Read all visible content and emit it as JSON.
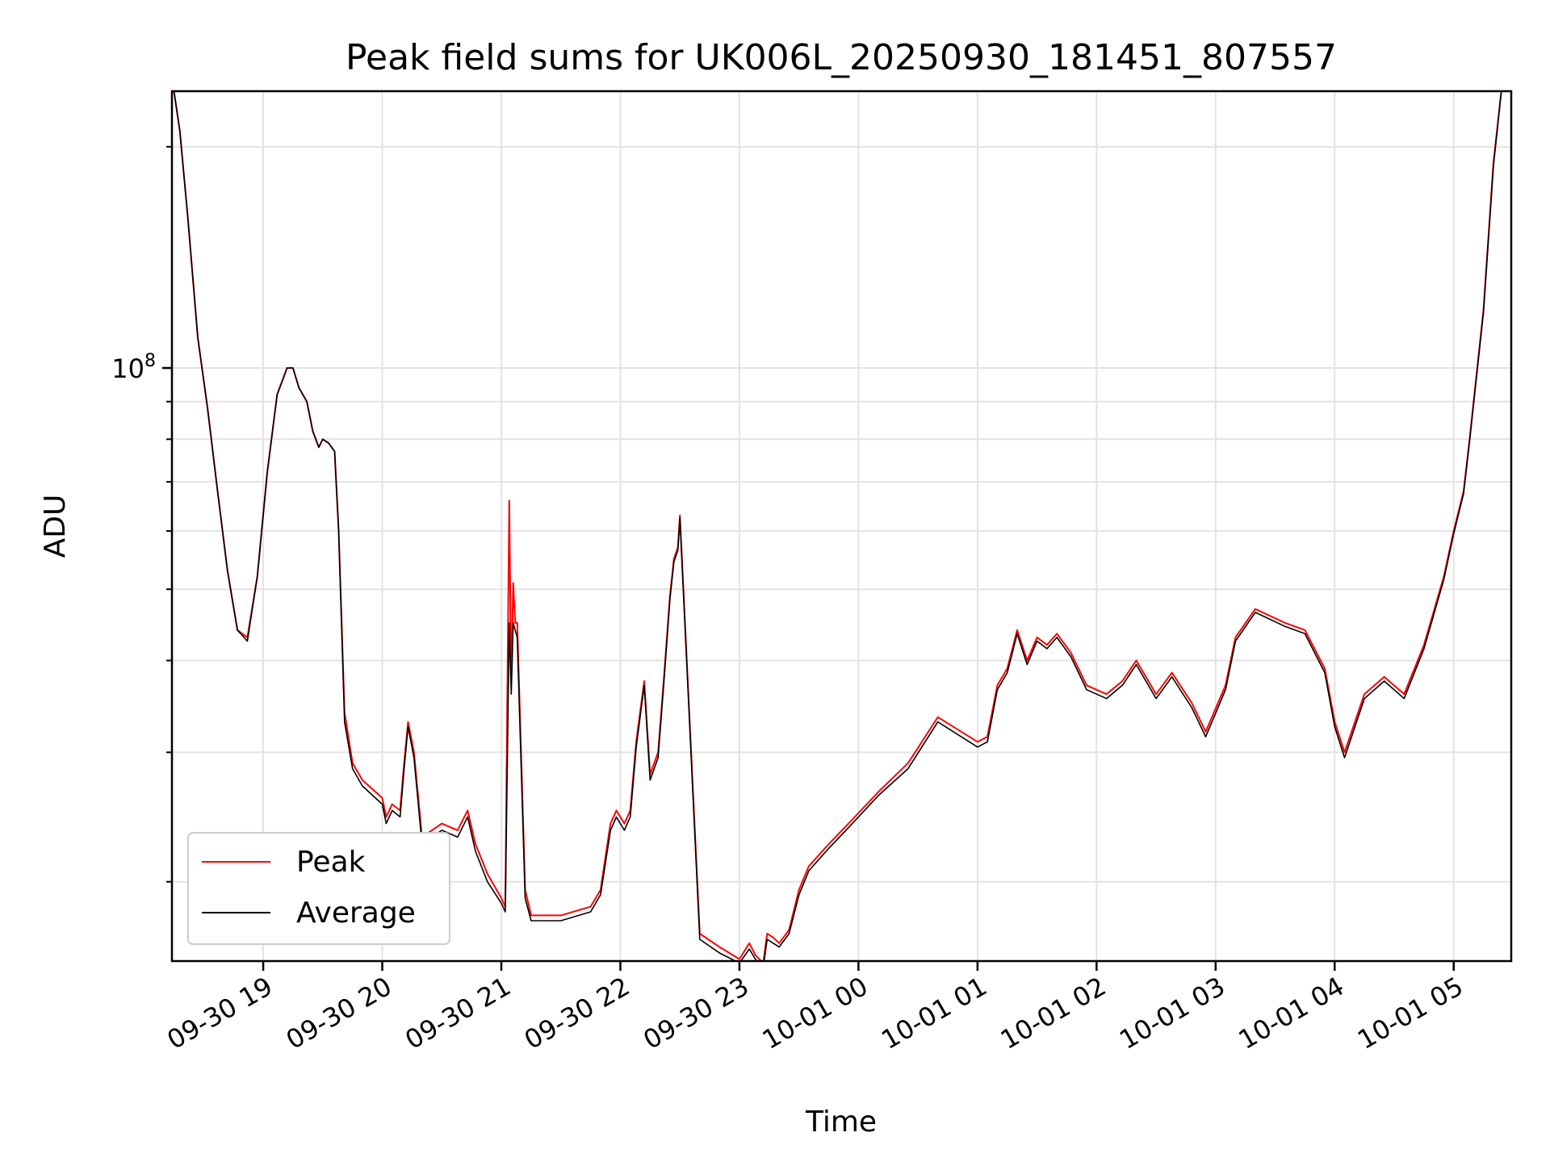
{
  "chart_data": {
    "type": "line",
    "title": "Peak field sums for UK006L_20250930_181451_807557",
    "xlabel": "Time",
    "ylabel": "ADU",
    "yscale": "log",
    "ylim": [
      15600000,
      238000000
    ],
    "xlim": [
      "2025-09-30 18:14",
      "2025-10-01 05:29"
    ],
    "grid": true,
    "legend_position": "lower-left",
    "x_tick_labels": [
      "09-30 19",
      "09-30 20",
      "09-30 21",
      "09-30 22",
      "09-30 23",
      "10-01 00",
      "10-01 01",
      "10-01 02",
      "10-01 03",
      "10-01 04",
      "10-01 05"
    ],
    "y_tick_label": {
      "base": "10",
      "exponent": "8"
    },
    "y_major_tick": 100000000,
    "y_minor_ticks": [
      20000000,
      30000000,
      40000000,
      50000000,
      60000000,
      70000000,
      80000000,
      90000000,
      200000000
    ],
    "series": [
      {
        "name": "Peak",
        "color": "#ff0000",
        "x": [
          "2025-09-30 18:15",
          "2025-09-30 18:18",
          "2025-09-30 18:22",
          "2025-09-30 18:27",
          "2025-09-30 18:32",
          "2025-09-30 18:37",
          "2025-09-30 18:42",
          "2025-09-30 18:47",
          "2025-09-30 18:52",
          "2025-09-30 18:57",
          "2025-09-30 19:02",
          "2025-09-30 19:07",
          "2025-09-30 19:12",
          "2025-09-30 19:15",
          "2025-09-30 19:18",
          "2025-09-30 19:22",
          "2025-09-30 19:25",
          "2025-09-30 19:28",
          "2025-09-30 19:30",
          "2025-09-30 19:33",
          "2025-09-30 19:36",
          "2025-09-30 19:38",
          "2025-09-30 19:41",
          "2025-09-30 19:45",
          "2025-09-30 19:50",
          "2025-09-30 20:00",
          "2025-09-30 20:02",
          "2025-09-30 20:05",
          "2025-09-30 20:09",
          "2025-09-30 20:11",
          "2025-09-30 20:13",
          "2025-09-30 20:16",
          "2025-09-30 20:20",
          "2025-09-30 20:30",
          "2025-09-30 20:38",
          "2025-09-30 20:43",
          "2025-09-30 20:47",
          "2025-09-30 20:53",
          "2025-09-30 21:00",
          "2025-09-30 21:02",
          "2025-09-30 21:04",
          "2025-09-30 21:05",
          "2025-09-30 21:06",
          "2025-09-30 21:07",
          "2025-09-30 21:08",
          "2025-09-30 21:12",
          "2025-09-30 21:15",
          "2025-09-30 21:30",
          "2025-09-30 21:45",
          "2025-09-30 21:50",
          "2025-09-30 21:55",
          "2025-09-30 21:58",
          "2025-09-30 22:02",
          "2025-09-30 22:05",
          "2025-09-30 22:08",
          "2025-09-30 22:12",
          "2025-09-30 22:15",
          "2025-09-30 22:19",
          "2025-09-30 22:22",
          "2025-09-30 22:25",
          "2025-09-30 22:27",
          "2025-09-30 22:29",
          "2025-09-30 22:30",
          "2025-09-30 22:40",
          "2025-09-30 22:50",
          "2025-09-30 23:00",
          "2025-09-30 23:05",
          "2025-09-30 23:08",
          "2025-09-30 23:12",
          "2025-09-30 23:14",
          "2025-09-30 23:17",
          "2025-09-30 23:20",
          "2025-09-30 23:25",
          "2025-09-30 23:30",
          "2025-09-30 23:35",
          "2025-09-30 23:45",
          "2025-09-30 23:55",
          "2025-10-01 00:10",
          "2025-10-01 00:25",
          "2025-10-01 00:40",
          "2025-10-01 01:00",
          "2025-10-01 01:05",
          "2025-10-01 01:10",
          "2025-10-01 01:15",
          "2025-10-01 01:20",
          "2025-10-01 01:25",
          "2025-10-01 01:30",
          "2025-10-01 01:35",
          "2025-10-01 01:40",
          "2025-10-01 01:47",
          "2025-10-01 01:55",
          "2025-10-01 02:05",
          "2025-10-01 02:13",
          "2025-10-01 02:20",
          "2025-10-01 02:30",
          "2025-10-01 02:38",
          "2025-10-01 02:48",
          "2025-10-01 02:55",
          "2025-10-01 03:05",
          "2025-10-01 03:10",
          "2025-10-01 03:20",
          "2025-10-01 03:35",
          "2025-10-01 03:45",
          "2025-10-01 03:55",
          "2025-10-01 04:00",
          "2025-10-01 04:05",
          "2025-10-01 04:15",
          "2025-10-01 04:25",
          "2025-10-01 04:35",
          "2025-10-01 04:45",
          "2025-10-01 04:55",
          "2025-10-01 05:00",
          "2025-10-01 05:05",
          "2025-10-01 05:08",
          "2025-10-01 05:15",
          "2025-10-01 05:20",
          "2025-10-01 05:24"
        ],
        "values": [
          238000000,
          210000000,
          160000000,
          110000000,
          88000000,
          68000000,
          53000000,
          44000000,
          43000000,
          52000000,
          72000000,
          92000000,
          100000000,
          100000000,
          94000000,
          90000000,
          82000000,
          78000000,
          80000000,
          79000000,
          77000000,
          60000000,
          34000000,
          29000000,
          27500000,
          26000000,
          24500000,
          25500000,
          25000000,
          29000000,
          33000000,
          30000000,
          23000000,
          24000000,
          23500000,
          25000000,
          22500000,
          20500000,
          19000000,
          18500000,
          66000000,
          37000000,
          51000000,
          45000000,
          45000000,
          19500000,
          18000000,
          18000000,
          18500000,
          19500000,
          24000000,
          25000000,
          24000000,
          25000000,
          31000000,
          37500000,
          28000000,
          30000000,
          38000000,
          49000000,
          55000000,
          57000000,
          63000000,
          17000000,
          16300000,
          15700000,
          16500000,
          15900000,
          15500000,
          17000000,
          16800000,
          16500000,
          17200000,
          19500000,
          21000000,
          22500000,
          24000000,
          26500000,
          29000000,
          33500000,
          31000000,
          31500000,
          37000000,
          39000000,
          44000000,
          40000000,
          43000000,
          42000000,
          43500000,
          41000000,
          37000000,
          36000000,
          37500000,
          40000000,
          36000000,
          38500000,
          35000000,
          32000000,
          37000000,
          43000000,
          47000000,
          45000000,
          44000000,
          39000000,
          33000000,
          30000000,
          36000000,
          38000000,
          36000000,
          42000000,
          52000000,
          60000000,
          68000000,
          80000000,
          120000000,
          190000000,
          238000000
        ]
      },
      {
        "name": "Average",
        "color": "#000000",
        "x": [
          "2025-09-30 18:15",
          "2025-09-30 18:18",
          "2025-09-30 18:22",
          "2025-09-30 18:27",
          "2025-09-30 18:32",
          "2025-09-30 18:37",
          "2025-09-30 18:42",
          "2025-09-30 18:47",
          "2025-09-30 18:52",
          "2025-09-30 18:57",
          "2025-09-30 19:02",
          "2025-09-30 19:07",
          "2025-09-30 19:12",
          "2025-09-30 19:15",
          "2025-09-30 19:18",
          "2025-09-30 19:22",
          "2025-09-30 19:25",
          "2025-09-30 19:28",
          "2025-09-30 19:30",
          "2025-09-30 19:33",
          "2025-09-30 19:36",
          "2025-09-30 19:38",
          "2025-09-30 19:41",
          "2025-09-30 19:45",
          "2025-09-30 19:50",
          "2025-09-30 20:00",
          "2025-09-30 20:02",
          "2025-09-30 20:05",
          "2025-09-30 20:09",
          "2025-09-30 20:11",
          "2025-09-30 20:13",
          "2025-09-30 20:16",
          "2025-09-30 20:20",
          "2025-09-30 20:30",
          "2025-09-30 20:38",
          "2025-09-30 20:43",
          "2025-09-30 20:47",
          "2025-09-30 20:53",
          "2025-09-30 21:00",
          "2025-09-30 21:02",
          "2025-09-30 21:04",
          "2025-09-30 21:05",
          "2025-09-30 21:06",
          "2025-09-30 21:07",
          "2025-09-30 21:08",
          "2025-09-30 21:12",
          "2025-09-30 21:15",
          "2025-09-30 21:30",
          "2025-09-30 21:45",
          "2025-09-30 21:50",
          "2025-09-30 21:55",
          "2025-09-30 21:58",
          "2025-09-30 22:02",
          "2025-09-30 22:05",
          "2025-09-30 22:08",
          "2025-09-30 22:12",
          "2025-09-30 22:15",
          "2025-09-30 22:19",
          "2025-09-30 22:22",
          "2025-09-30 22:25",
          "2025-09-30 22:27",
          "2025-09-30 22:29",
          "2025-09-30 22:30",
          "2025-09-30 22:40",
          "2025-09-30 22:50",
          "2025-09-30 23:00",
          "2025-09-30 23:05",
          "2025-09-30 23:08",
          "2025-09-30 23:12",
          "2025-09-30 23:14",
          "2025-09-30 23:17",
          "2025-09-30 23:20",
          "2025-09-30 23:25",
          "2025-09-30 23:30",
          "2025-09-30 23:35",
          "2025-09-30 23:45",
          "2025-09-30 23:55",
          "2025-10-01 00:10",
          "2025-10-01 00:25",
          "2025-10-01 00:40",
          "2025-10-01 01:00",
          "2025-10-01 01:05",
          "2025-10-01 01:10",
          "2025-10-01 01:15",
          "2025-10-01 01:20",
          "2025-10-01 01:25",
          "2025-10-01 01:30",
          "2025-10-01 01:35",
          "2025-10-01 01:40",
          "2025-10-01 01:47",
          "2025-10-01 01:55",
          "2025-10-01 02:05",
          "2025-10-01 02:13",
          "2025-10-01 02:20",
          "2025-10-01 02:30",
          "2025-10-01 02:38",
          "2025-10-01 02:48",
          "2025-10-01 02:55",
          "2025-10-01 03:05",
          "2025-10-01 03:10",
          "2025-10-01 03:20",
          "2025-10-01 03:35",
          "2025-10-01 03:45",
          "2025-10-01 03:55",
          "2025-10-01 04:00",
          "2025-10-01 04:05",
          "2025-10-01 04:15",
          "2025-10-01 04:25",
          "2025-10-01 04:35",
          "2025-10-01 04:45",
          "2025-10-01 04:55",
          "2025-10-01 05:00",
          "2025-10-01 05:05",
          "2025-10-01 05:08",
          "2025-10-01 05:15",
          "2025-10-01 05:20",
          "2025-10-01 05:24"
        ],
        "values": [
          238000000,
          210000000,
          160000000,
          110000000,
          88000000,
          68000000,
          53000000,
          44000000,
          42500000,
          52000000,
          72000000,
          92000000,
          100000000,
          100000000,
          94000000,
          90000000,
          82000000,
          78000000,
          80000000,
          79000000,
          77000000,
          60000000,
          33000000,
          28500000,
          27000000,
          25500000,
          24000000,
          25000000,
          24500000,
          28500000,
          32500000,
          29500000,
          22500000,
          23500000,
          23000000,
          24500000,
          22000000,
          20000000,
          18700000,
          18200000,
          45000000,
          36000000,
          45000000,
          44000000,
          43000000,
          19000000,
          17700000,
          17700000,
          18200000,
          19200000,
          23500000,
          24500000,
          23500000,
          24500000,
          30500000,
          37000000,
          27500000,
          29500000,
          37500000,
          48500000,
          54500000,
          56500000,
          62500000,
          16700000,
          16000000,
          15500000,
          16200000,
          15700000,
          15300000,
          16700000,
          16500000,
          16300000,
          17000000,
          19200000,
          20700000,
          22200000,
          23700000,
          26200000,
          28500000,
          33000000,
          30500000,
          31000000,
          36500000,
          38500000,
          43500000,
          39500000,
          42500000,
          41500000,
          43000000,
          40500000,
          36500000,
          35500000,
          37000000,
          39500000,
          35500000,
          38000000,
          34500000,
          31500000,
          36500000,
          42500000,
          46500000,
          44500000,
          43500000,
          38500000,
          32500000,
          29500000,
          35500000,
          37500000,
          35500000,
          41500000,
          51500000,
          59500000,
          67500000,
          79500000,
          119000000,
          188000000,
          238000000
        ]
      }
    ]
  }
}
